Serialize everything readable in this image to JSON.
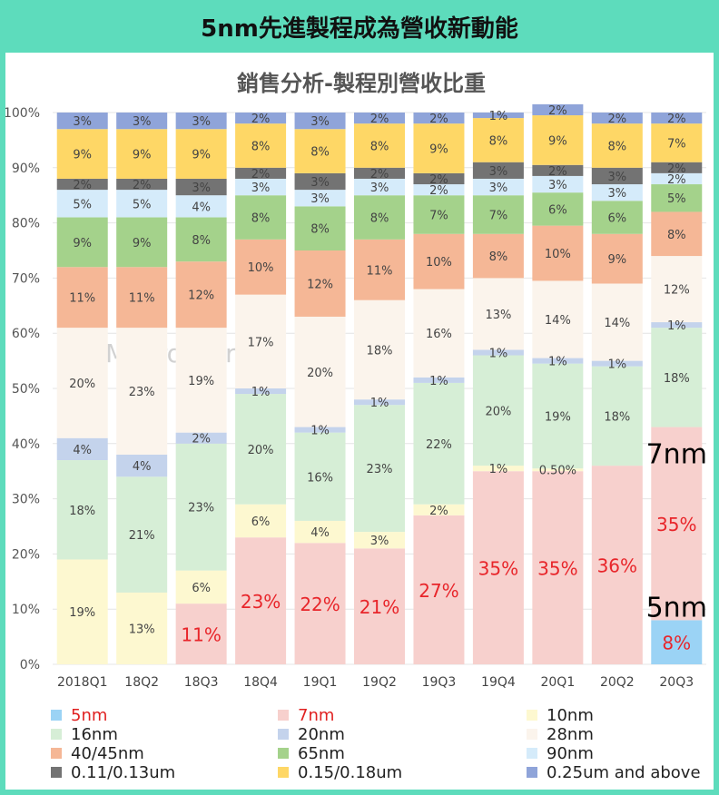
{
  "header_title": "5nm先進製程成為營收新動能",
  "watermark": "MacroMicro",
  "chart_data": {
    "type": "bar",
    "stacked": true,
    "title": "銷售分析-製程別營收比重",
    "ylim": [
      0,
      100
    ],
    "yticks": [
      "0%",
      "10%",
      "20%",
      "30%",
      "40%",
      "50%",
      "60%",
      "70%",
      "80%",
      "90%",
      "100%"
    ],
    "categories": [
      "2018Q1",
      "18Q2",
      "18Q3",
      "18Q4",
      "19Q1",
      "19Q2",
      "19Q3",
      "19Q4",
      "20Q1",
      "20Q2",
      "20Q3"
    ],
    "series": [
      {
        "name": "5nm",
        "color": "#9bd3f5",
        "legend_color": "#e02020",
        "values": [
          0,
          0,
          0,
          0,
          0,
          0,
          0,
          0,
          0,
          0,
          8
        ],
        "labels": [
          "",
          "",
          "",
          "",
          "",
          "",
          "",
          "",
          "",
          "",
          "8%"
        ]
      },
      {
        "name": "7nm",
        "color": "#f7d0cd",
        "legend_color": "#e02020",
        "values": [
          0,
          0,
          11,
          23,
          22,
          21,
          27,
          35,
          35,
          36,
          35
        ],
        "labels": [
          "",
          "",
          "11%",
          "23%",
          "22%",
          "21%",
          "27%",
          "35%",
          "35%",
          "36%",
          "35%"
        ]
      },
      {
        "name": "10nm",
        "color": "#fdf8d0",
        "legend_color": "#222222",
        "values": [
          19,
          13,
          6,
          6,
          4,
          3,
          2,
          1,
          0.5,
          0,
          0
        ],
        "labels": [
          "19%",
          "13%",
          "6%",
          "6%",
          "4%",
          "3%",
          "2%",
          "1%",
          "0.50%",
          "",
          ""
        ]
      },
      {
        "name": "16nm",
        "color": "#d6eed6",
        "legend_color": "#222222",
        "values": [
          18,
          21,
          23,
          20,
          16,
          23,
          22,
          20,
          19,
          18,
          18
        ],
        "labels": [
          "18%",
          "21%",
          "23%",
          "20%",
          "16%",
          "23%",
          "22%",
          "20%",
          "19%",
          "18%",
          "18%"
        ]
      },
      {
        "name": "20nm",
        "color": "#c4d3ec",
        "legend_color": "#222222",
        "values": [
          4,
          4,
          2,
          1,
          1,
          1,
          1,
          1,
          1,
          1,
          1
        ],
        "labels": [
          "4%",
          "4%",
          "2%",
          "1%",
          "1%",
          "1%",
          "1%",
          "1%",
          "1%",
          "1%",
          "1%"
        ]
      },
      {
        "name": "28nm",
        "color": "#fbf4ec",
        "legend_color": "#222222",
        "values": [
          20,
          23,
          19,
          17,
          20,
          18,
          16,
          13,
          14,
          14,
          12
        ],
        "labels": [
          "20%",
          "23%",
          "19%",
          "17%",
          "20%",
          "18%",
          "16%",
          "13%",
          "14%",
          "14%",
          "12%"
        ]
      },
      {
        "name": "40/45nm",
        "color": "#f5b796",
        "legend_color": "#222222",
        "values": [
          11,
          11,
          12,
          10,
          12,
          11,
          10,
          8,
          10,
          9,
          8
        ],
        "labels": [
          "11%",
          "11%",
          "12%",
          "10%",
          "12%",
          "11%",
          "10%",
          "8%",
          "10%",
          "9%",
          "8%"
        ]
      },
      {
        "name": "65nm",
        "color": "#a4d28b",
        "legend_color": "#222222",
        "values": [
          9,
          9,
          8,
          8,
          8,
          8,
          7,
          7,
          6,
          6,
          5
        ],
        "labels": [
          "9%",
          "9%",
          "8%",
          "8%",
          "8%",
          "8%",
          "7%",
          "7%",
          "6%",
          "6%",
          "5%"
        ]
      },
      {
        "name": "90nm",
        "color": "#d5ebfa",
        "legend_color": "#222222",
        "values": [
          5,
          5,
          4,
          3,
          3,
          3,
          2,
          3,
          3,
          3,
          2
        ],
        "labels": [
          "5%",
          "5%",
          "4%",
          "3%",
          "3%",
          "3%",
          "2%",
          "3%",
          "3%",
          "3%",
          "2%"
        ]
      },
      {
        "name": "0.11/0.13um",
        "color": "#737373",
        "legend_color": "#222222",
        "values": [
          2,
          2,
          3,
          2,
          3,
          2,
          2,
          3,
          2,
          3,
          2
        ],
        "labels": [
          "2%",
          "2%",
          "3%",
          "2%",
          "3%",
          "2%",
          "2%",
          "3%",
          "2%",
          "3%",
          "2%"
        ]
      },
      {
        "name": "0.15/0.18um",
        "color": "#fed766",
        "legend_color": "#222222",
        "values": [
          9,
          9,
          9,
          8,
          8,
          8,
          9,
          8,
          9,
          8,
          7
        ],
        "labels": [
          "9%",
          "9%",
          "9%",
          "8%",
          "8%",
          "8%",
          "9%",
          "8%",
          "9%",
          "8%",
          "7%"
        ]
      },
      {
        "name": "0.25um and above",
        "color": "#8fa4d9",
        "legend_color": "#222222",
        "values": [
          3,
          3,
          3,
          2,
          3,
          2,
          2,
          1,
          2,
          2,
          2
        ],
        "labels": [
          "3%",
          "3%",
          "3%",
          "2%",
          "3%",
          "2%",
          "2%",
          "1%",
          "2%",
          "2%",
          "2%"
        ]
      }
    ],
    "annotations": [
      {
        "text": "7nm",
        "series": "7nm",
        "category": "20Q3"
      },
      {
        "text": "5nm",
        "series": "5nm",
        "category": "20Q3"
      }
    ]
  }
}
